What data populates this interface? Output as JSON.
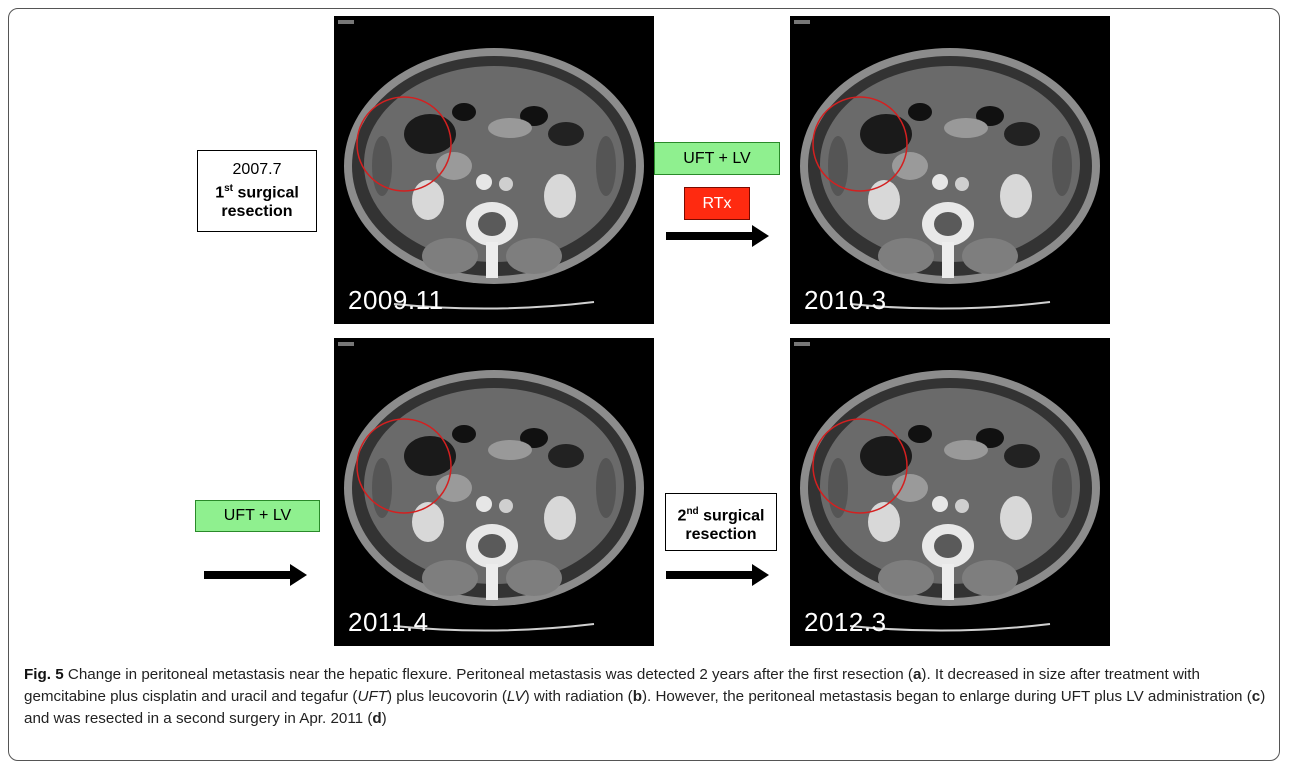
{
  "panels": {
    "a": {
      "date": "2009.11"
    },
    "b": {
      "date": "2010.3"
    },
    "c": {
      "date": "2011.4"
    },
    "d": {
      "date": "2012.3"
    }
  },
  "annotations": {
    "first_resection_date": "2007.7",
    "first_resection_ord": "1",
    "first_resection_sup": "st",
    "first_resection_line1": " surgical",
    "first_resection_line2": "resection",
    "ufl_1": "UFT + LV",
    "rtx": "RTx",
    "ufl_2": "UFT + LV",
    "second_resection_ord": "2",
    "second_resection_sup": "nd",
    "second_resection_line1": " surgical",
    "second_resection_line2": "resection"
  },
  "caption": {
    "fig_label": "Fig. 5",
    "t1": " Change in peritoneal metastasis near the hepatic flexure. Peritoneal metastasis was detected 2 years after the first resection (",
    "a": "a",
    "t2": "). It decreased in size after treatment with gemcitabine plus cisplatin and uracil and tegafur (",
    "uft": "UFT",
    "t3": ") plus leucovorin (",
    "lv": "LV",
    "t4": ") with radiation (",
    "b": "b",
    "t5": "). However, the peritoneal metastasis began to enlarge during UFT plus LV administration (",
    "c": "c",
    "t6": ") and was resected in a second surgery in Apr. 2011 (",
    "d": "d",
    "t7": ")"
  },
  "colors": {
    "green_box": "#8ff08f",
    "red_box": "#ff2a10",
    "lesion_circle": "#d42020"
  }
}
